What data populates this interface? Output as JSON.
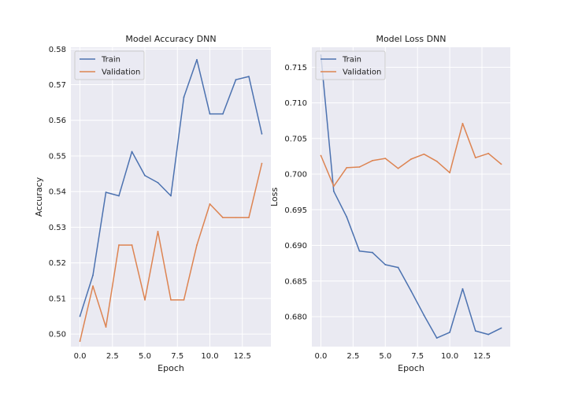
{
  "chart_data": [
    {
      "type": "line",
      "title": "Model Accuracy DNN",
      "xlabel": "Epoch",
      "ylabel": "Accuracy",
      "xlim": [
        -0.7,
        14.7
      ],
      "ylim": [
        0.4965,
        0.5805
      ],
      "xticks": [
        0,
        2.5,
        5,
        7.5,
        10,
        12.5
      ],
      "xtick_labels": [
        "0.0",
        "2.5",
        "5.0",
        "7.5",
        "10.0",
        "12.5"
      ],
      "yticks": [
        0.5,
        0.51,
        0.52,
        0.53,
        0.54,
        0.55,
        0.56,
        0.57,
        0.58
      ],
      "ytick_labels": [
        "0.50",
        "0.51",
        "0.52",
        "0.53",
        "0.54",
        "0.55",
        "0.56",
        "0.57",
        "0.58"
      ],
      "grid": true,
      "legend_position": "top-left",
      "x": [
        0,
        1,
        2,
        3,
        4,
        5,
        6,
        7,
        8,
        9,
        10,
        11,
        12,
        13,
        14
      ],
      "series": [
        {
          "name": "Train",
          "color": "#4c72b0",
          "values": [
            0.505,
            0.5165,
            0.5398,
            0.5388,
            0.5512,
            0.5445,
            0.5425,
            0.5388,
            0.5665,
            0.577,
            0.5618,
            0.5618,
            0.5714,
            0.5723,
            0.5562
          ]
        },
        {
          "name": "Validation",
          "color": "#dd8452",
          "values": [
            0.498,
            0.5135,
            0.502,
            0.525,
            0.525,
            0.5096,
            0.5288,
            0.5096,
            0.5096,
            0.525,
            0.5365,
            0.5327,
            0.5327,
            0.5327,
            0.5479
          ]
        }
      ]
    },
    {
      "type": "line",
      "title": "Model Loss DNN",
      "xlabel": "Epoch",
      "ylabel": "Loss",
      "xlim": [
        -0.7,
        14.7
      ],
      "ylim": [
        0.6758,
        0.7178
      ],
      "xticks": [
        0,
        2.5,
        5,
        7.5,
        10,
        12.5
      ],
      "xtick_labels": [
        "0.0",
        "2.5",
        "5.0",
        "7.5",
        "10.0",
        "12.5"
      ],
      "yticks": [
        0.68,
        0.685,
        0.69,
        0.695,
        0.7,
        0.705,
        0.71,
        0.715
      ],
      "ytick_labels": [
        "0.680",
        "0.685",
        "0.690",
        "0.695",
        "0.700",
        "0.705",
        "0.710",
        "0.715"
      ],
      "grid": true,
      "legend_position": "top-left",
      "x": [
        0,
        1,
        2,
        3,
        4,
        5,
        6,
        7,
        8,
        9,
        10,
        11,
        12,
        13,
        14
      ],
      "series": [
        {
          "name": "Train",
          "color": "#4c72b0",
          "values": [
            0.7167,
            0.6976,
            0.694,
            0.6892,
            0.689,
            0.6873,
            0.6869,
            0.6836,
            0.6802,
            0.677,
            0.6778,
            0.6839,
            0.678,
            0.6775,
            0.6784
          ]
        },
        {
          "name": "Validation",
          "color": "#dd8452",
          "values": [
            0.7026,
            0.6983,
            0.7009,
            0.701,
            0.7019,
            0.7022,
            0.7008,
            0.7021,
            0.7028,
            0.7018,
            0.7002,
            0.7071,
            0.7023,
            0.7029,
            0.7014
          ]
        }
      ]
    }
  ]
}
